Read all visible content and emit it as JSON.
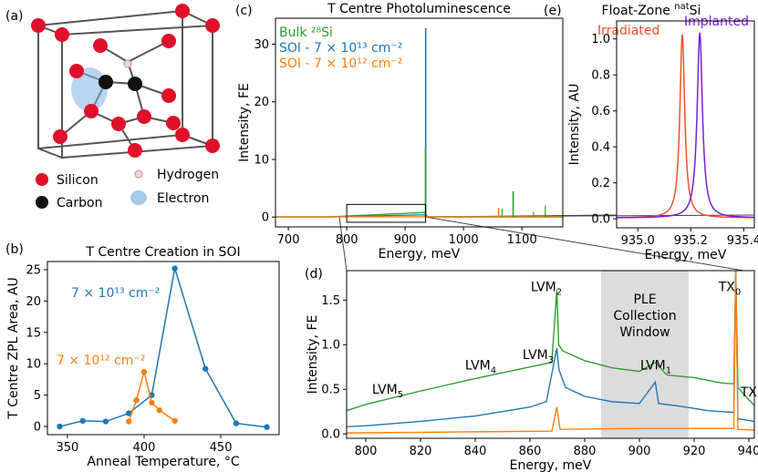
{
  "colors": {
    "blue": "#1f77b4",
    "orange": "#ff7f0e",
    "green": "#2ca02c",
    "red": "#f0502d",
    "purple": "#7a1fd6",
    "silicon": "#e0102a",
    "carbon": "#111111",
    "shade": "#dcdcdc"
  },
  "panel_labels": {
    "a": "(a)",
    "b": "(b)",
    "c": "(c)",
    "d": "(d)",
    "e": "(e)"
  },
  "legend_a": {
    "silicon": "Silicon",
    "carbon": "Carbon",
    "hydrogen": "Hydrogen",
    "electron": "Electron"
  },
  "chart_data": [
    {
      "id": "b",
      "type": "line",
      "title": "T Centre Creation in SOI",
      "xlabel": "Anneal Temperature, °C",
      "ylabel": "T Centre ZPL Area, AU",
      "xlim": [
        337,
        488
      ],
      "ylim": [
        -1.3,
        26.3
      ],
      "xticks": [
        "350",
        "400",
        "450"
      ],
      "yticks": [
        "0",
        "5",
        "10",
        "15",
        "20",
        "25"
      ],
      "series": [
        {
          "name": "7 × 10¹³ cm⁻²",
          "color": "blue",
          "x": [
            345,
            360,
            375,
            390,
            405,
            420,
            440,
            460,
            480
          ],
          "y": [
            0.0,
            0.9,
            0.8,
            2.1,
            5.0,
            25.2,
            9.2,
            0.5,
            -0.1
          ]
        },
        {
          "name": "7 × 10¹² cm⁻²",
          "color": "orange",
          "x": [
            390,
            395,
            400,
            405,
            410,
            420
          ],
          "y": [
            0.8,
            4.2,
            8.7,
            3.8,
            2.6,
            0.9
          ]
        }
      ]
    },
    {
      "id": "c",
      "type": "line",
      "title": "T Centre Photoluminescence",
      "xlabel": "Energy, meV",
      "ylabel": "Intensity, FE",
      "xlim": [
        678,
        1170
      ],
      "ylim": [
        -1.7,
        34.5
      ],
      "xticks": [
        "700",
        "800",
        "900",
        "1000",
        "1100"
      ],
      "yticks": [
        "0",
        "10",
        "20",
        "30"
      ],
      "series": [
        {
          "name": "Bulk ²⁸Si",
          "color": "green"
        },
        {
          "name": "SOI - 7 × 10¹³ cm⁻²",
          "color": "blue"
        },
        {
          "name": "SOI - 7 × 10¹² cm⁻²",
          "color": "orange"
        }
      ],
      "peaks": [
        {
          "series": "blue",
          "x": 935.2,
          "y": 32.8
        },
        {
          "series": "green",
          "x": 935.0,
          "y": 12.0
        },
        {
          "series": "green",
          "x": 1085,
          "y": 4.5
        },
        {
          "series": "orange",
          "x": 1060,
          "y": 1.6
        }
      ]
    },
    {
      "id": "d",
      "type": "line",
      "xlabel": "Energy, meV",
      "ylabel": "Intensity, FE",
      "xlim": [
        793,
        942
      ],
      "ylim": [
        -0.05,
        1.83
      ],
      "xticks": [
        "800",
        "820",
        "840",
        "860",
        "880",
        "900",
        "920",
        "940"
      ],
      "yticks": [
        "0.0",
        "0.5",
        "1.0",
        "1.5"
      ],
      "shaded_region": {
        "x0": 886,
        "x1": 918,
        "label": [
          "PLE",
          "Collection",
          "Window"
        ]
      },
      "annotations": [
        {
          "text": "LVM",
          "sub": "5",
          "x": 808,
          "y": 0.45
        },
        {
          "text": "LVM",
          "sub": "4",
          "x": 842,
          "y": 0.72
        },
        {
          "text": "LVM",
          "sub": "3",
          "x": 863,
          "y": 0.84
        },
        {
          "text": "LVM",
          "sub": "2",
          "x": 866,
          "y": 1.6
        },
        {
          "text": "LVM",
          "sub": "1",
          "x": 906,
          "y": 0.72
        },
        {
          "text": "TX",
          "sub": "0",
          "x": 933,
          "y": 1.6
        },
        {
          "text": "TX",
          "sub": "1",
          "x": 941,
          "y": 0.42
        }
      ],
      "series": [
        {
          "color": "green",
          "x": [
            793,
            800,
            820,
            840,
            860,
            868,
            869.8,
            870.5,
            872,
            880,
            890,
            900,
            905.8,
            910,
            920,
            930,
            934.5,
            935.2,
            936,
            940,
            942
          ],
          "y": [
            0.26,
            0.33,
            0.48,
            0.62,
            0.75,
            0.8,
            1.61,
            1.0,
            0.93,
            0.82,
            0.74,
            0.7,
            0.8,
            0.66,
            0.63,
            0.57,
            0.56,
            1.83,
            0.52,
            0.38,
            0.32
          ]
        },
        {
          "color": "blue",
          "x": [
            793,
            800,
            820,
            840,
            860,
            866,
            869.8,
            870.6,
            873,
            880,
            890,
            900,
            905.8,
            907,
            915,
            925,
            934.5,
            935.2,
            936,
            940,
            942
          ],
          "y": [
            0.08,
            0.09,
            0.14,
            0.2,
            0.3,
            0.36,
            0.96,
            0.72,
            0.52,
            0.42,
            0.36,
            0.34,
            0.58,
            0.34,
            0.31,
            0.26,
            0.24,
            1.83,
            0.17,
            0.15,
            0.14
          ]
        },
        {
          "color": "orange",
          "x": [
            793,
            830,
            868,
            869.8,
            871,
            900,
            930,
            934.5,
            935.2,
            936,
            942
          ],
          "y": [
            0.01,
            0.02,
            0.03,
            0.3,
            0.05,
            0.06,
            0.06,
            0.06,
            1.83,
            0.05,
            0.04
          ]
        }
      ]
    },
    {
      "id": "e",
      "type": "line",
      "title": "Float-Zone ",
      "title_sup": "nat",
      "title_tail": "Si",
      "xlabel": "Energy, meV",
      "ylabel": "Intensity, AU",
      "xlim": [
        934.92,
        935.44
      ],
      "ylim": [
        -0.05,
        1.1
      ],
      "xticks": [
        "935.0",
        "935.2",
        "935.4"
      ],
      "yticks": [
        "0.0",
        "0.2",
        "0.4",
        "0.6",
        "0.8",
        "1.0"
      ],
      "series": [
        {
          "name": "Irradiated",
          "color": "red",
          "center": 935.168,
          "hwhm": 0.011,
          "amp": 1.02
        },
        {
          "name": "Implanted",
          "color": "purple",
          "center": 935.234,
          "hwhm": 0.012,
          "amp": 1.03
        }
      ]
    }
  ]
}
